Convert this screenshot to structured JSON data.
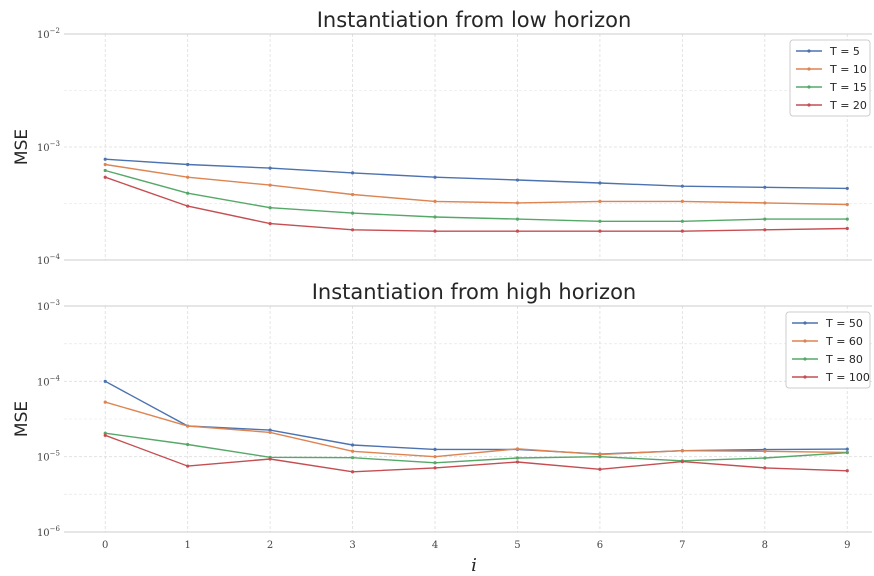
{
  "chart_data": [
    {
      "type": "line",
      "title": "Instantiation from low horizon",
      "xlabel": "",
      "ylabel": "MSE",
      "yscale": "log",
      "ylim": [
        0.0001,
        0.01
      ],
      "xlim": [
        -0.5,
        9.3
      ],
      "grid": true,
      "legend": "top-right",
      "x": [
        0,
        1,
        2,
        3,
        4,
        5,
        6,
        7,
        8,
        9
      ],
      "x_ticks": [
        "0",
        "1",
        "2",
        "3",
        "4",
        "5",
        "6",
        "7",
        "8",
        "9"
      ],
      "y_ticks": [
        {
          "value": 0.01,
          "base": "10",
          "exp": "−2"
        },
        {
          "value": 0.001,
          "base": "10",
          "exp": "−3"
        },
        {
          "value": 0.0001,
          "base": "10",
          "exp": "−4"
        }
      ],
      "series": [
        {
          "name": "T = 5",
          "color": "#4c72b0",
          "values": [
            0.00078,
            0.0007,
            0.00065,
            0.00059,
            0.00054,
            0.00051,
            0.00048,
            0.00045,
            0.00044,
            0.00043
          ]
        },
        {
          "name": "T = 10",
          "color": "#dd8452",
          "values": [
            0.0007,
            0.00054,
            0.00046,
            0.00038,
            0.00033,
            0.00032,
            0.00033,
            0.00033,
            0.00032,
            0.00031
          ]
        },
        {
          "name": "T = 15",
          "color": "#55a868",
          "values": [
            0.00062,
            0.00039,
            0.00029,
            0.00026,
            0.00024,
            0.00023,
            0.00022,
            0.00022,
            0.00023,
            0.00023
          ]
        },
        {
          "name": "T = 20",
          "color": "#c44e52",
          "values": [
            0.00054,
            0.0003,
            0.00021,
            0.000185,
            0.00018,
            0.00018,
            0.00018,
            0.00018,
            0.000185,
            0.00019
          ]
        }
      ]
    },
    {
      "type": "line",
      "title": "Instantiation from high horizon",
      "xlabel": "i",
      "ylabel": "MSE",
      "yscale": "log",
      "ylim": [
        1e-06,
        0.001
      ],
      "xlim": [
        -0.5,
        9.3
      ],
      "grid": true,
      "legend": "top-right",
      "x": [
        0,
        1,
        2,
        3,
        4,
        5,
        6,
        7,
        8,
        9
      ],
      "x_ticks": [
        "0",
        "1",
        "2",
        "3",
        "4",
        "5",
        "6",
        "7",
        "8",
        "9"
      ],
      "y_ticks": [
        {
          "value": 0.001,
          "base": "10",
          "exp": "−3"
        },
        {
          "value": 0.0001,
          "base": "10",
          "exp": "−4"
        },
        {
          "value": 1e-05,
          "base": "10",
          "exp": "−5"
        },
        {
          "value": 1e-06,
          "base": "10",
          "exp": "−6"
        }
      ],
      "series": [
        {
          "name": "T = 50",
          "color": "#4c72b0",
          "values": [
            0.0001,
            2.55e-05,
            2.25e-05,
            1.43e-05,
            1.25e-05,
            1.25e-05,
            1.08e-05,
            1.2e-05,
            1.24e-05,
            1.26e-05
          ]
        },
        {
          "name": "T = 60",
          "color": "#dd8452",
          "values": [
            5.3e-05,
            2.55e-05,
            2.1e-05,
            1.18e-05,
            1e-05,
            1.27e-05,
            1.07e-05,
            1.2e-05,
            1.18e-05,
            1.14e-05
          ]
        },
        {
          "name": "T = 80",
          "color": "#55a868",
          "values": [
            2.05e-05,
            1.45e-05,
            9.8e-06,
            9.7e-06,
            8.3e-06,
            9.6e-06,
            1e-05,
            8.8e-06,
            9.6e-06,
            1.13e-05
          ]
        },
        {
          "name": "T = 100",
          "color": "#c44e52",
          "values": [
            1.92e-05,
            7.5e-06,
            9.3e-06,
            6.3e-06,
            7.1e-06,
            8.5e-06,
            6.8e-06,
            8.6e-06,
            7.1e-06,
            6.5e-06
          ]
        }
      ]
    }
  ]
}
